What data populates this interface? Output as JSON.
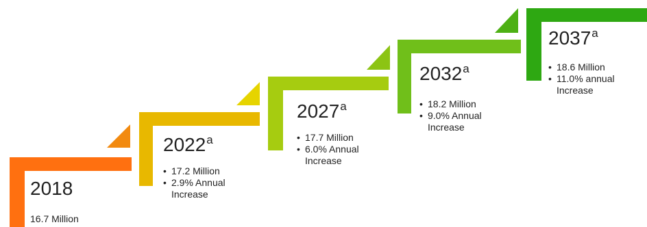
{
  "steps": [
    {
      "year": "2018",
      "superscript": "",
      "lines": [
        "16.7 Million"
      ],
      "color": "#FF7010"
    },
    {
      "year": "2022",
      "superscript": "a",
      "lines": [
        "17.2 Million",
        "2.9% Annual Increase"
      ],
      "color": "#E8B800"
    },
    {
      "year": "2027",
      "superscript": "a",
      "lines": [
        "17.7 Million",
        "6.0% Annual Increase"
      ],
      "color": "#A6CC10"
    },
    {
      "year": "2032",
      "superscript": "a",
      "lines": [
        "18.2 Million",
        "9.0% Annual Increase"
      ],
      "color": "#70BF1A"
    },
    {
      "year": "2037",
      "superscript": "a",
      "lines": [
        "18.6 Million",
        "11.0% annual Increase"
      ],
      "color": "#2EA812"
    }
  ],
  "triangle_colors": [
    "#F28A10",
    "#E6D400",
    "#8CC414",
    "#4DB014"
  ]
}
